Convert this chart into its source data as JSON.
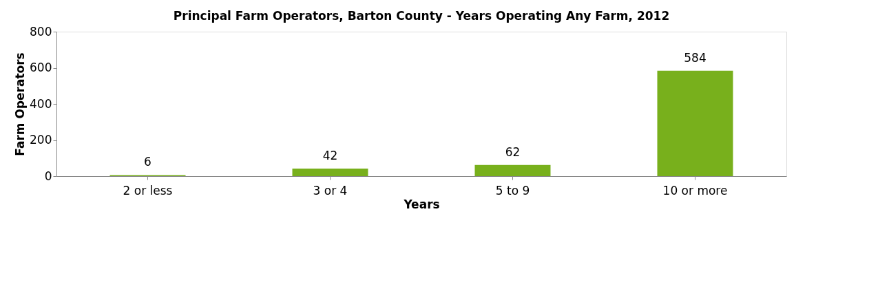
{
  "chart_data": {
    "type": "bar",
    "title": "Principal Farm Operators, Barton County - Years Operating Any Farm, 2012",
    "xlabel": "Years",
    "ylabel": "Farm Operators",
    "categories": [
      "2 or less",
      "3 or 4",
      "5 to 9",
      "10 or more"
    ],
    "values": [
      6,
      42,
      62,
      584
    ],
    "color": "#78b01c",
    "ylim": [
      0,
      800
    ],
    "yticks": [
      0,
      200,
      400,
      600,
      800
    ],
    "grid": false,
    "data_labels": true
  }
}
